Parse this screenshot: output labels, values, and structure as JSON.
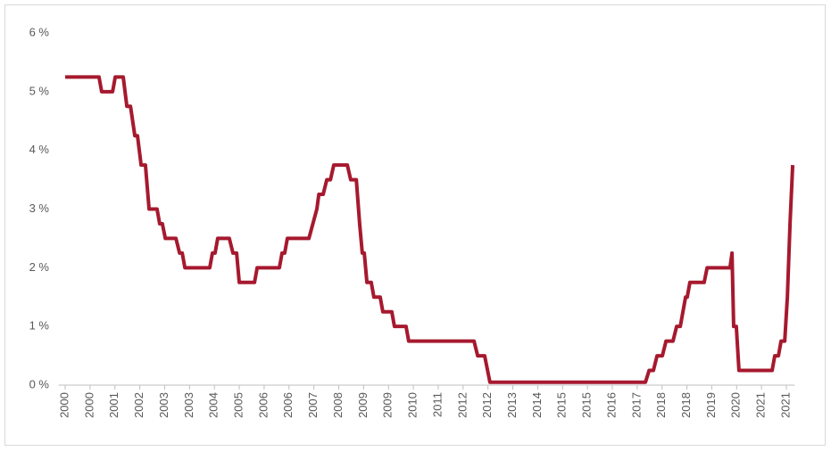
{
  "chart_data": {
    "type": "line",
    "x": [
      2000.0,
      2001.02,
      2001.1,
      2001.43,
      2001.51,
      2001.75,
      2001.86,
      2001.97,
      2002.1,
      2002.18,
      2002.29,
      2002.42,
      2002.53,
      2002.77,
      2002.85,
      2002.93,
      2003.02,
      2003.34,
      2003.45,
      2003.53,
      2003.61,
      2004.36,
      2004.44,
      2004.52,
      2004.6,
      2004.95,
      2005.06,
      2005.17,
      2005.25,
      2005.71,
      2005.79,
      2006.46,
      2006.54,
      2006.62,
      2006.7,
      2007.35,
      2007.59,
      2007.65,
      2007.78,
      2007.89,
      2008.0,
      2008.1,
      2008.51,
      2008.61,
      2008.78,
      2008.88,
      2008.96,
      2009.02,
      2009.1,
      2009.23,
      2009.31,
      2009.5,
      2009.58,
      2009.85,
      2009.93,
      2010.28,
      2010.36,
      2012.33,
      2012.44,
      2012.65,
      2012.81,
      2017.5,
      2017.61,
      2017.74,
      2017.85,
      2018.01,
      2018.12,
      2018.33,
      2018.44,
      2018.55,
      2018.63,
      2018.71,
      2018.76,
      2018.84,
      2019.27,
      2019.36,
      2020.0,
      2020.05,
      2020.11,
      2020.16,
      2020.24,
      2020.32,
      2021.32,
      2021.4,
      2021.51,
      2021.59,
      2021.7,
      2021.78,
      2021.86,
      2021.94
    ],
    "values": [
      5.25,
      5.25,
      5.0,
      5.0,
      5.25,
      5.25,
      4.75,
      4.75,
      4.25,
      4.25,
      3.75,
      3.75,
      3.0,
      3.0,
      2.75,
      2.75,
      2.5,
      2.5,
      2.25,
      2.25,
      2.0,
      2.0,
      2.25,
      2.25,
      2.5,
      2.5,
      2.25,
      2.25,
      1.75,
      1.75,
      2.0,
      2.0,
      2.25,
      2.25,
      2.5,
      2.5,
      3.0,
      3.25,
      3.25,
      3.5,
      3.5,
      3.75,
      3.75,
      3.5,
      3.5,
      2.75,
      2.25,
      2.25,
      1.75,
      1.75,
      1.5,
      1.5,
      1.25,
      1.25,
      1.0,
      1.0,
      0.75,
      0.75,
      0.5,
      0.5,
      0.05,
      0.05,
      0.25,
      0.25,
      0.5,
      0.5,
      0.75,
      0.75,
      1.0,
      1.0,
      1.25,
      1.5,
      1.5,
      1.75,
      1.75,
      2.0,
      2.0,
      2.0,
      2.25,
      1.0,
      1.0,
      0.25,
      0.25,
      0.5,
      0.5,
      0.75,
      0.75,
      1.5,
      2.75,
      3.75
    ],
    "color": "#a6192e",
    "xlim": [
      1999.8,
      2022.0
    ],
    "xticks": [
      {
        "value": 2000,
        "label": "2000"
      },
      {
        "value": 2000.75,
        "label": "2000"
      },
      {
        "value": 2001.5,
        "label": "2001"
      },
      {
        "value": 2002.25,
        "label": "2002"
      },
      {
        "value": 2003,
        "label": "2003"
      },
      {
        "value": 2003.75,
        "label": "2003"
      },
      {
        "value": 2004.5,
        "label": "2004"
      },
      {
        "value": 2005.25,
        "label": "2005"
      },
      {
        "value": 2006,
        "label": "2006"
      },
      {
        "value": 2006.75,
        "label": "2006"
      },
      {
        "value": 2007.5,
        "label": "2007"
      },
      {
        "value": 2008.25,
        "label": "2008"
      },
      {
        "value": 2009,
        "label": "2009"
      },
      {
        "value": 2009.75,
        "label": "2009"
      },
      {
        "value": 2010.5,
        "label": "2010"
      },
      {
        "value": 2011.25,
        "label": "2011"
      },
      {
        "value": 2012,
        "label": "2012"
      },
      {
        "value": 2012.75,
        "label": "2012"
      },
      {
        "value": 2013.5,
        "label": "2013"
      },
      {
        "value": 2014.25,
        "label": "2014"
      },
      {
        "value": 2015,
        "label": "2015"
      },
      {
        "value": 2015.75,
        "label": "2015"
      },
      {
        "value": 2016.5,
        "label": "2016"
      },
      {
        "value": 2017.25,
        "label": "2017"
      },
      {
        "value": 2018,
        "label": "2018"
      },
      {
        "value": 2018.75,
        "label": "2018"
      },
      {
        "value": 2019.5,
        "label": "2019"
      },
      {
        "value": 2020.25,
        "label": "2020"
      },
      {
        "value": 2021,
        "label": "2021"
      },
      {
        "value": 2021.75,
        "label": "2021"
      }
    ],
    "ylim": [
      0,
      6
    ],
    "yticks": [
      {
        "value": 0,
        "label": "0 %"
      },
      {
        "value": 1,
        "label": "1 %"
      },
      {
        "value": 2,
        "label": "2 %"
      },
      {
        "value": 3,
        "label": "3 %"
      },
      {
        "value": 4,
        "label": "4 %"
      },
      {
        "value": 5,
        "label": "5 %"
      },
      {
        "value": 6,
        "label": "6 %"
      }
    ]
  }
}
